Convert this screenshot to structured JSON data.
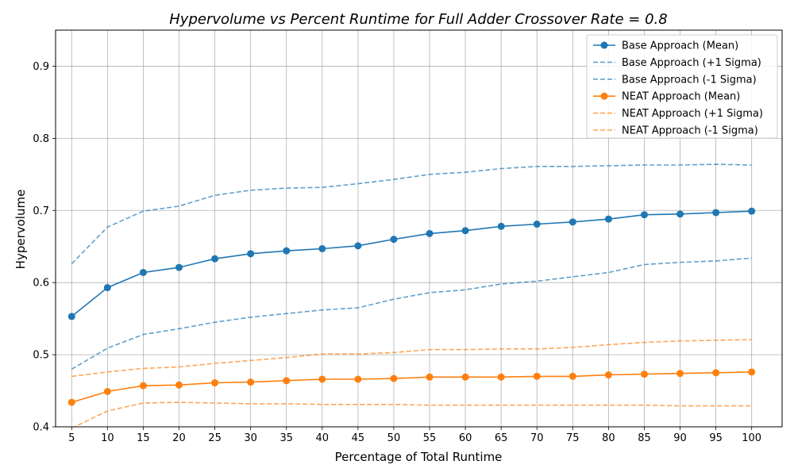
{
  "chart_data": {
    "type": "line",
    "title": "Hypervolume vs Percent Runtime for Full Adder Crossover Rate = 0.8",
    "xlabel": "Percentage of Total Runtime",
    "ylabel": "Hypervolume",
    "x": [
      5,
      10,
      15,
      20,
      25,
      30,
      35,
      40,
      45,
      50,
      55,
      60,
      65,
      70,
      75,
      80,
      85,
      90,
      95,
      100
    ],
    "x_tick_labels": [
      "5",
      "10",
      "15",
      "20",
      "25",
      "30",
      "35",
      "40",
      "45",
      "50",
      "55",
      "60",
      "65",
      "70",
      "75",
      "80",
      "85",
      "90",
      "95",
      "100"
    ],
    "ylim": [
      0.4,
      0.95
    ],
    "y_ticks": [
      0.4,
      0.5,
      0.6,
      0.7,
      0.8,
      0.9
    ],
    "y_tick_labels": [
      "0.4",
      "0.5",
      "0.6",
      "0.7",
      "0.8",
      "0.9"
    ],
    "grid": true,
    "legend_position": "top-right",
    "series": [
      {
        "name": "Base Approach (Mean)",
        "color": "#1f77b4",
        "style": "solid-marker",
        "values": [
          0.553,
          0.593,
          0.614,
          0.621,
          0.633,
          0.64,
          0.644,
          0.647,
          0.651,
          0.66,
          0.668,
          0.672,
          0.678,
          0.681,
          0.684,
          0.688,
          0.694,
          0.695,
          0.697,
          0.699
        ]
      },
      {
        "name": "Base Approach (+1 Sigma)",
        "color": "#1f77b4",
        "style": "dashed",
        "values": [
          0.626,
          0.677,
          0.699,
          0.706,
          0.721,
          0.728,
          0.731,
          0.732,
          0.737,
          0.743,
          0.75,
          0.753,
          0.758,
          0.761,
          0.761,
          0.762,
          0.763,
          0.763,
          0.764,
          0.763
        ]
      },
      {
        "name": "Base Approach (-1 Sigma)",
        "color": "#1f77b4",
        "style": "dashed",
        "values": [
          0.48,
          0.509,
          0.528,
          0.536,
          0.545,
          0.552,
          0.557,
          0.562,
          0.565,
          0.577,
          0.586,
          0.59,
          0.598,
          0.602,
          0.608,
          0.614,
          0.625,
          0.628,
          0.63,
          0.634
        ]
      },
      {
        "name": "NEAT Approach (Mean)",
        "color": "#ff7f0e",
        "style": "solid-marker",
        "values": [
          0.434,
          0.449,
          0.457,
          0.458,
          0.461,
          0.462,
          0.464,
          0.466,
          0.466,
          0.467,
          0.469,
          0.469,
          0.469,
          0.47,
          0.47,
          0.472,
          0.473,
          0.474,
          0.475,
          0.476
        ]
      },
      {
        "name": "NEAT Approach (+1 Sigma)",
        "color": "#ff7f0e",
        "style": "dashed",
        "values": [
          0.47,
          0.476,
          0.481,
          0.483,
          0.488,
          0.492,
          0.496,
          0.501,
          0.501,
          0.503,
          0.507,
          0.507,
          0.508,
          0.508,
          0.51,
          0.514,
          0.517,
          0.519,
          0.52,
          0.521
        ]
      },
      {
        "name": "NEAT Approach (-1 Sigma)",
        "color": "#ff7f0e",
        "style": "dashed",
        "values": [
          0.398,
          0.422,
          0.433,
          0.434,
          0.433,
          0.432,
          0.432,
          0.431,
          0.431,
          0.431,
          0.43,
          0.43,
          0.43,
          0.43,
          0.43,
          0.43,
          0.43,
          0.429,
          0.429,
          0.429
        ]
      }
    ]
  }
}
